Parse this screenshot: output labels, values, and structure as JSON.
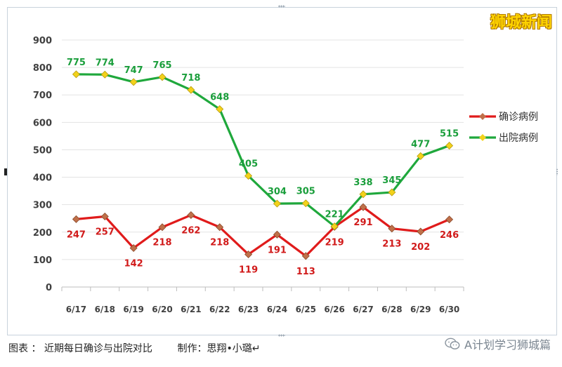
{
  "watermark": "狮城新闻",
  "caption": "图表 ： 近期每日确诊与出院对比        制作：思翔•小璐↵",
  "brand": "A计划学习狮城篇",
  "chart_data": {
    "type": "line",
    "categories": [
      "6/17",
      "6/18",
      "6/19",
      "6/20",
      "6/21",
      "6/22",
      "6/23",
      "6/24",
      "6/25",
      "6/26",
      "6/27",
      "6/28",
      "6/29",
      "6/30"
    ],
    "ylim": [
      0,
      900
    ],
    "yticks": [
      0,
      100,
      200,
      300,
      400,
      500,
      600,
      700,
      800,
      900
    ],
    "grid": true,
    "legend_position": "right",
    "series": [
      {
        "name": "确诊病例",
        "color": "#e01b1b",
        "marker_color": "#c0704a",
        "values": [
          247,
          257,
          142,
          218,
          262,
          218,
          119,
          191,
          113,
          219,
          291,
          213,
          202,
          246
        ]
      },
      {
        "name": "出院病例",
        "color": "#1fa83c",
        "marker_color": "#f2d21b",
        "values": [
          775,
          774,
          747,
          765,
          718,
          648,
          405,
          304,
          305,
          221,
          338,
          345,
          477,
          515
        ]
      }
    ]
  }
}
